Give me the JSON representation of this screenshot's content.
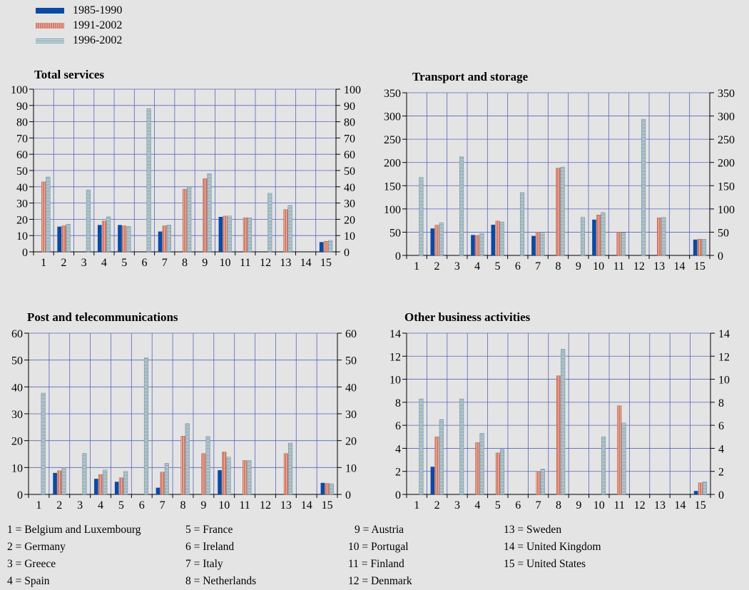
{
  "legend": [
    {
      "label": "1985-1990",
      "color": "#0a4aa3"
    },
    {
      "label": "1991-2002",
      "color": "#d47c6a"
    },
    {
      "label": "1996-2002",
      "color": "#8aa9b4"
    }
  ],
  "colors": {
    "background": "#e4e4e5",
    "grid": "#5a66b8",
    "s1": "#0a4aa3",
    "s2": "#d47c6a",
    "s3": "#8aa9b4"
  },
  "chart_data": [
    {
      "type": "bar",
      "title": "Total services",
      "categories": [
        "1",
        "2",
        "3",
        "4",
        "5",
        "6",
        "7",
        "8",
        "9",
        "10",
        "11",
        "12",
        "13",
        "14",
        "15"
      ],
      "ylim": [
        0,
        100
      ],
      "yticks": [
        0,
        10,
        20,
        30,
        40,
        50,
        60,
        70,
        80,
        90,
        100
      ],
      "grid": true,
      "series": [
        {
          "name": "1985-1990",
          "values": [
            null,
            15.5,
            null,
            16.5,
            16.5,
            null,
            12.5,
            null,
            null,
            21.5,
            null,
            null,
            null,
            null,
            6
          ]
        },
        {
          "name": "1991-2002",
          "values": [
            43,
            16,
            null,
            19,
            16,
            null,
            16,
            38.5,
            45,
            22,
            21,
            null,
            26,
            null,
            6.5
          ]
        },
        {
          "name": "1996-2002",
          "values": [
            46,
            17,
            38,
            21.5,
            15.5,
            88,
            16.5,
            40,
            48,
            22,
            21,
            36,
            28.5,
            null,
            7
          ]
        }
      ]
    },
    {
      "type": "bar",
      "title": "Transport and storage",
      "categories": [
        "1",
        "2",
        "3",
        "4",
        "5",
        "6",
        "7",
        "8",
        "9",
        "10",
        "11",
        "12",
        "13",
        "14",
        "15"
      ],
      "ylim": [
        0,
        350
      ],
      "yticks": [
        0,
        50,
        100,
        150,
        200,
        250,
        300,
        350
      ],
      "grid": true,
      "series": [
        {
          "name": "1985-1990",
          "values": [
            null,
            58,
            null,
            44,
            66,
            null,
            42,
            null,
            null,
            77,
            null,
            null,
            null,
            null,
            34
          ]
        },
        {
          "name": "1991-2002",
          "values": [
            null,
            65,
            null,
            43,
            74,
            null,
            50,
            188,
            null,
            87,
            50,
            null,
            81,
            null,
            35
          ]
        },
        {
          "name": "1996-2002",
          "values": [
            168,
            70,
            212,
            47,
            72,
            135,
            48,
            190,
            82,
            92,
            49,
            293,
            82,
            null,
            35
          ]
        }
      ]
    },
    {
      "type": "bar",
      "title": "Post and telecommunications",
      "categories": [
        "1",
        "2",
        "3",
        "4",
        "5",
        "6",
        "7",
        "8",
        "9",
        "10",
        "11",
        "12",
        "13",
        "14",
        "15"
      ],
      "ylim": [
        0,
        60
      ],
      "yticks": [
        0,
        10,
        20,
        30,
        40,
        50,
        60
      ],
      "grid": true,
      "series": [
        {
          "name": "1985-1990",
          "values": [
            null,
            8,
            null,
            5.8,
            4.7,
            null,
            2.5,
            null,
            null,
            9,
            null,
            null,
            null,
            null,
            4.3
          ]
        },
        {
          "name": "1991-2002",
          "values": [
            null,
            8.8,
            null,
            7.4,
            6.2,
            null,
            8.3,
            21.7,
            15.2,
            15.8,
            12.6,
            null,
            15.2,
            null,
            4.1
          ]
        },
        {
          "name": "1996-2002",
          "values": [
            37.7,
            10,
            15.2,
            9.1,
            8.6,
            50.8,
            11.5,
            26.3,
            21.5,
            13.9,
            12.6,
            null,
            19.1,
            null,
            3.9
          ]
        }
      ]
    },
    {
      "type": "bar",
      "title": "Other business activities",
      "categories": [
        "1",
        "2",
        "3",
        "4",
        "5",
        "6",
        "7",
        "8",
        "9",
        "10",
        "11",
        "12",
        "13",
        "14",
        "15"
      ],
      "ylim": [
        0,
        14
      ],
      "yticks": [
        0,
        2,
        4,
        6,
        8,
        10,
        12,
        14
      ],
      "grid": true,
      "series": [
        {
          "name": "1985-1990",
          "values": [
            null,
            2.4,
            null,
            null,
            null,
            null,
            null,
            null,
            null,
            null,
            null,
            null,
            null,
            null,
            0.3
          ]
        },
        {
          "name": "1991-2002",
          "values": [
            null,
            5,
            null,
            4.5,
            3.6,
            null,
            2,
            10.3,
            null,
            null,
            7.7,
            null,
            null,
            null,
            1
          ]
        },
        {
          "name": "1996-2002",
          "values": [
            8.3,
            6.5,
            8.3,
            5.3,
            3.9,
            null,
            2.2,
            12.6,
            null,
            5,
            6.2,
            null,
            null,
            null,
            1.1
          ]
        }
      ]
    }
  ],
  "country_key": [
    "1 = Belgium and Luxembourg",
    "2 = Germany",
    "3 = Greece",
    "4 = Spain",
    "5 = France",
    "6 = Ireland",
    "7 = Italy",
    "8 = Netherlands",
    "9 = Austria",
    "10 = Portugal",
    "11 = Finland",
    "12 = Denmark",
    "13 = Sweden",
    "14 = United Kingdom",
    "15 = United States"
  ]
}
